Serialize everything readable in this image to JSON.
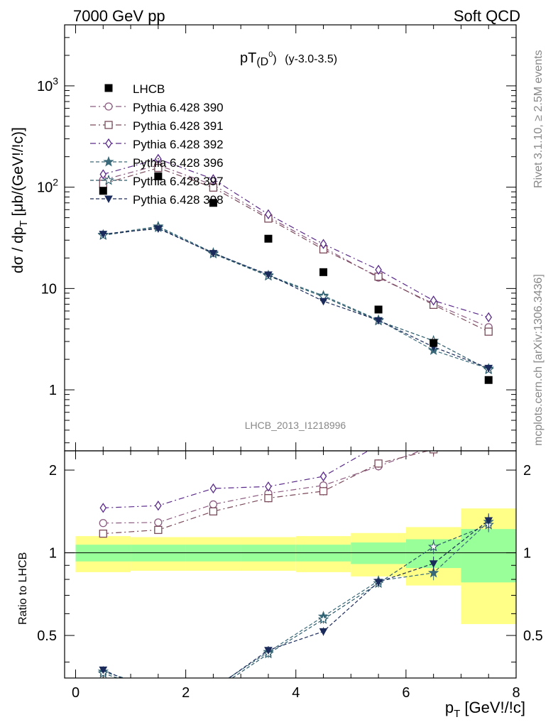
{
  "header": {
    "left": "7000 GeV pp",
    "right": "Soft QCD"
  },
  "side": {
    "rivet": "Rivet 3.1.10, ≥ 2.5M events",
    "mcplots": "mcplots.cern.ch [arXiv:1306.3436]"
  },
  "plot": {
    "title_main": "pT",
    "title_sub": "(D",
    "title_sup": "0",
    "title_close": ")",
    "title_range": "(y-3.0-3.5)",
    "watermark": "LHCB_2013_I1218996",
    "ylabel": "dσ / dp",
    "ylabel_sub": "T",
    "ylabel_unit": " [μb/(GeV!/!c)]",
    "ratio_ylabel": "Ratio to LHCB",
    "xlabel": "p",
    "xlabel_sub": "T",
    "xlabel_unit": " [GeV!/!c]"
  },
  "colors": {
    "data": "#000000",
    "s390": "#8b5a7f",
    "s391": "#7a4a5a",
    "s392": "#5a2a8a",
    "s396": "#3a6a7a",
    "s397": "#2a5a6a",
    "s398": "#1a2a5a",
    "band_inner": "#99ff99",
    "band_outer": "#ffff88"
  },
  "chart_data": {
    "type": "scatter",
    "x": [
      0.5,
      1.5,
      2.5,
      3.5,
      4.5,
      5.5,
      6.5,
      7.5
    ],
    "xlim": [
      -0.2,
      8.0
    ],
    "ylim_main": [
      0.25,
      4000
    ],
    "yscale_main": "log",
    "ylim_ratio": [
      0.35,
      2.35
    ],
    "yscale_ratio": "log",
    "main_y_ticks": [
      {
        "v": 1,
        "label": "1"
      },
      {
        "v": 10,
        "label": "10"
      },
      {
        "v": 100,
        "label": "10",
        "sup": "2"
      },
      {
        "v": 1000,
        "label": "10",
        "sup": "3"
      }
    ],
    "ratio_y_ticks": [
      {
        "v": 0.5,
        "label": "0.5"
      },
      {
        "v": 1,
        "label": "1"
      },
      {
        "v": 2,
        "label": "2"
      }
    ],
    "x_ticks": [
      0,
      2,
      4,
      6,
      8
    ],
    "data": {
      "name": "LHCB",
      "values": [
        92,
        128,
        70,
        31,
        14.5,
        6.2,
        2.9,
        1.25
      ],
      "band_inner_rel": [
        0.07,
        0.07,
        0.07,
        0.07,
        0.07,
        0.09,
        0.12,
        0.22
      ],
      "band_outer_rel": [
        0.15,
        0.14,
        0.14,
        0.14,
        0.15,
        0.18,
        0.24,
        0.45
      ]
    },
    "series": [
      {
        "name": "Pythia 6.428 390",
        "marker": "circle",
        "style": "dashdot",
        "colorKey": "s390",
        "values": [
          118,
          165,
          105,
          51,
          25.5,
          12.8,
          7.1,
          4.15
        ]
      },
      {
        "name": "Pythia 6.428 391",
        "marker": "square",
        "style": "dashdot",
        "colorKey": "s391",
        "values": [
          108,
          155,
          99,
          49,
          24.3,
          13.1,
          6.9,
          3.75
        ]
      },
      {
        "name": "Pythia 6.428 392",
        "marker": "diamond",
        "style": "dashdot",
        "colorKey": "s392",
        "values": [
          134,
          190,
          120,
          54,
          27.5,
          15.3,
          7.6,
          5.2
        ]
      },
      {
        "name": "Pythia 6.428 396",
        "marker": "star",
        "style": "dashed",
        "colorKey": "s396",
        "values": [
          34,
          41,
          22.5,
          13.5,
          8.5,
          4.9,
          2.45,
          1.62
        ]
      },
      {
        "name": "Pythia 6.428 397",
        "marker": "star-open",
        "style": "dashed",
        "colorKey": "s397",
        "values": [
          33.5,
          40,
          22,
          13.3,
          8.3,
          4.8,
          3.05,
          1.58
        ]
      },
      {
        "name": "Pythia 6.428 398",
        "marker": "tri-down",
        "style": "dashed",
        "colorKey": "s398",
        "values": [
          34.5,
          39,
          22.3,
          13.7,
          7.5,
          4.85,
          2.65,
          1.64
        ]
      }
    ]
  }
}
